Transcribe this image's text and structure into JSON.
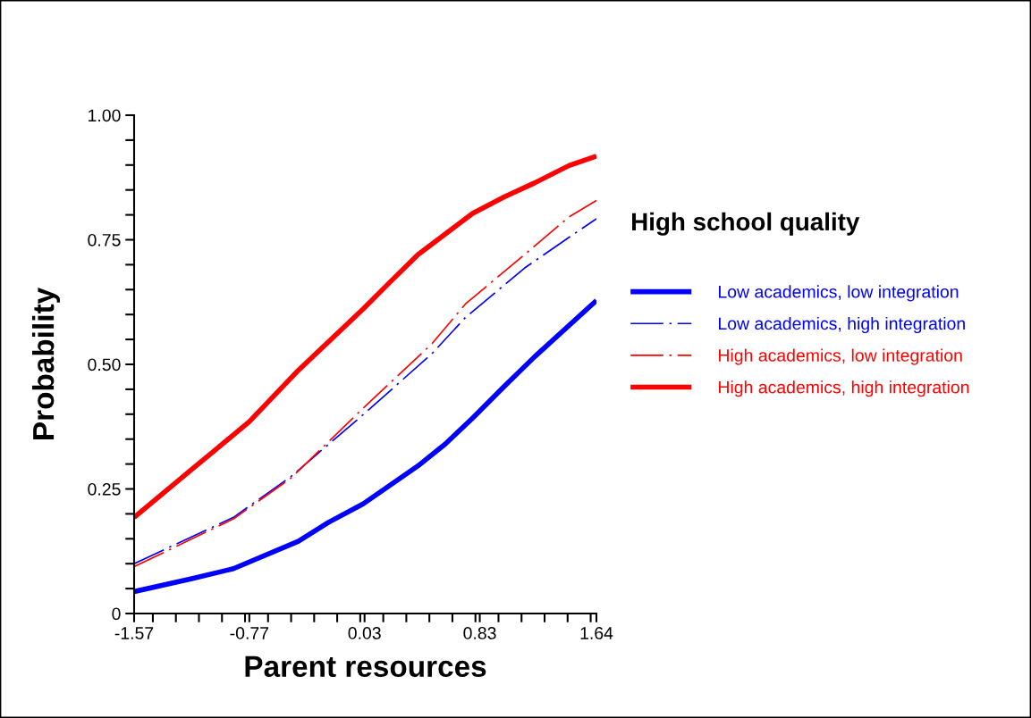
{
  "chart_data": {
    "type": "line",
    "xlabel": "Parent resources",
    "ylabel": "Probability",
    "legend_title": "High school quality",
    "xlim": [
      -1.57,
      1.64
    ],
    "ylim": [
      0,
      1.0
    ],
    "xticks": [
      -1.57,
      -0.77,
      0.03,
      0.83,
      1.64
    ],
    "yticks": [
      {
        "value": 0,
        "label": "0"
      },
      {
        "value": 0.25,
        "label": "0.25"
      },
      {
        "value": 0.5,
        "label": "0.50"
      },
      {
        "value": 0.75,
        "label": "0.75"
      },
      {
        "value": 1.0,
        "label": "1.00"
      }
    ],
    "legend": "right",
    "grid": false,
    "series": [
      {
        "name": "Low academics, low integration",
        "color": "#0000ff",
        "line_style": "solid",
        "x": [
          -1.57,
          -1.17,
          -0.88,
          -0.43,
          -0.22,
          0.02,
          0.4,
          0.59,
          0.78,
          0.99,
          1.21,
          1.64
        ],
        "values": [
          0.044,
          0.07,
          0.09,
          0.145,
          0.183,
          0.22,
          0.296,
          0.34,
          0.392,
          0.453,
          0.515,
          0.628
        ]
      },
      {
        "name": "Low academics, high integration",
        "color": "#0000ff",
        "line_style": "dashed",
        "x": [
          -1.57,
          -0.88,
          -0.48,
          0.02,
          0.5,
          0.73,
          1.14,
          1.45,
          1.64
        ],
        "values": [
          0.1,
          0.193,
          0.275,
          0.399,
          0.522,
          0.594,
          0.693,
          0.755,
          0.792
        ]
      },
      {
        "name": "High academics, low integration",
        "color": "#ff0000",
        "line_style": "dashed",
        "x": [
          -1.57,
          -0.88,
          -0.48,
          0.02,
          0.5,
          0.73,
          1.14,
          1.45,
          1.64
        ],
        "values": [
          0.094,
          0.19,
          0.272,
          0.412,
          0.542,
          0.621,
          0.72,
          0.796,
          0.829
        ]
      },
      {
        "name": "High academics, high integration",
        "color": "#ff0000",
        "line_style": "solid",
        "x": [
          -1.57,
          -1.17,
          -0.77,
          -0.43,
          0.02,
          0.21,
          0.4,
          0.78,
          1.0,
          1.21,
          1.45,
          1.64
        ],
        "values": [
          0.193,
          0.289,
          0.385,
          0.488,
          0.611,
          0.666,
          0.72,
          0.803,
          0.836,
          0.864,
          0.899,
          0.918
        ]
      }
    ]
  }
}
